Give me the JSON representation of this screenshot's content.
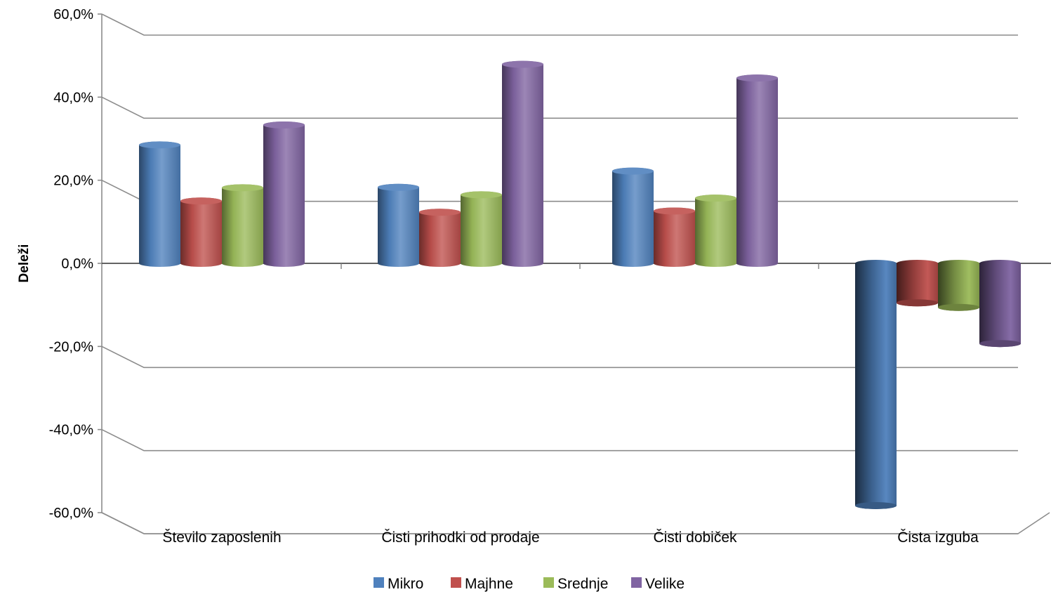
{
  "chart_data": {
    "type": "bar",
    "title": "",
    "xlabel": "",
    "ylabel": "Deleži",
    "ylim": [
      -60,
      60
    ],
    "yticks": [
      60,
      40,
      20,
      0,
      -20,
      -40,
      -60
    ],
    "ytick_labels": [
      "60,0%",
      "40,0%",
      "20,0%",
      "0,0%",
      "-20,0%",
      "-40,0%",
      "-60,0%"
    ],
    "categories": [
      "Število zaposlenih",
      "Čisti prihodki od prodaje",
      "Čisti dobiček",
      "Čista izguba"
    ],
    "series": [
      {
        "name": "Mikro",
        "values": [
          28.5,
          18.3,
          22.2,
          -58.3
        ],
        "color": "#4f81bd"
      },
      {
        "name": "Majhne",
        "values": [
          15.0,
          12.3,
          12.6,
          -9.5
        ],
        "color": "#c0504d"
      },
      {
        "name": "Srednje",
        "values": [
          18.2,
          16.5,
          15.7,
          -10.6
        ],
        "color": "#9bbb59"
      },
      {
        "name": "Velike",
        "values": [
          33.3,
          47.9,
          44.6,
          -19.3
        ],
        "color": "#8064a2"
      }
    ],
    "grid": true,
    "legend_position": "bottom"
  }
}
